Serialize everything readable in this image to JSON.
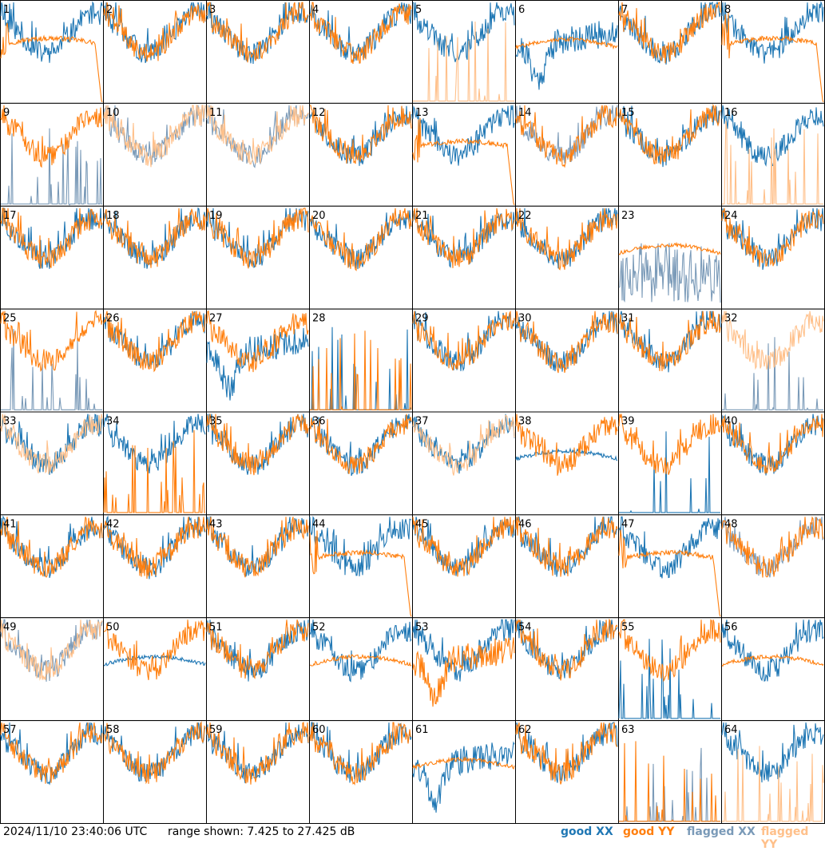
{
  "footer": {
    "timestamp": "2024/11/10 23:40:06 UTC",
    "range_text": "range shown: 7.425 to 27.425 dB"
  },
  "legend": [
    {
      "label": "good XX",
      "color": "#1f77b4"
    },
    {
      "label": "good YY",
      "color": "#ff7f0e"
    },
    {
      "label": "flagged XX",
      "color": "#7a9ab8"
    },
    {
      "label": "flagged YY",
      "color": "#ffc08a"
    }
  ],
  "colors": {
    "good_xx": "#1f77b4",
    "good_yy": "#ff7f0e",
    "flagged_xx": "#7a9ab8",
    "flagged_yy": "#ffc08a"
  },
  "chart_data": {
    "type": "line",
    "grid": {
      "rows": 8,
      "cols": 8
    },
    "ylim": [
      7.425,
      27.425
    ],
    "panels": [
      {
        "id": "1",
        "xx": "good",
        "yy": "good",
        "xxk": "normal",
        "yyk": "flat_drop"
      },
      {
        "id": "2",
        "xx": "good",
        "yy": "good",
        "xxk": "normal",
        "yyk": "normal"
      },
      {
        "id": "3",
        "xx": "good",
        "yy": "good",
        "xxk": "normal",
        "yyk": "normal"
      },
      {
        "id": "4",
        "xx": "good",
        "yy": "good",
        "xxk": "normal",
        "yyk": "normal"
      },
      {
        "id": "5",
        "xx": "good",
        "yy": "flagged",
        "xxk": "normal",
        "yyk": "spikes"
      },
      {
        "id": "6",
        "xx": "good",
        "yy": "good",
        "xxk": "dip",
        "yyk": "flat"
      },
      {
        "id": "7",
        "xx": "good",
        "yy": "good",
        "xxk": "normal",
        "yyk": "normal"
      },
      {
        "id": "8",
        "xx": "good",
        "yy": "good",
        "xxk": "normal",
        "yyk": "flat_drop"
      },
      {
        "id": "9",
        "xx": "flagged",
        "yy": "good",
        "xxk": "spikes",
        "yyk": "normal"
      },
      {
        "id": "10",
        "xx": "flagged",
        "yy": "flagged",
        "xxk": "normal",
        "yyk": "normal"
      },
      {
        "id": "11",
        "xx": "flagged",
        "yy": "flagged",
        "xxk": "normal",
        "yyk": "normal"
      },
      {
        "id": "12",
        "xx": "good",
        "yy": "good",
        "xxk": "normal",
        "yyk": "normal"
      },
      {
        "id": "13",
        "xx": "good",
        "yy": "good",
        "xxk": "normal",
        "yyk": "flat_drop"
      },
      {
        "id": "14",
        "xx": "flagged",
        "yy": "good",
        "xxk": "normal",
        "yyk": "normal"
      },
      {
        "id": "15",
        "xx": "good",
        "yy": "good",
        "xxk": "normal",
        "yyk": "normal"
      },
      {
        "id": "16",
        "xx": "good",
        "yy": "flagged",
        "xxk": "normal",
        "yyk": "spikes"
      },
      {
        "id": "17",
        "xx": "good",
        "yy": "good",
        "xxk": "normal",
        "yyk": "normal"
      },
      {
        "id": "18",
        "xx": "good",
        "yy": "good",
        "xxk": "normal",
        "yyk": "normal"
      },
      {
        "id": "19",
        "xx": "good",
        "yy": "good",
        "xxk": "normal",
        "yyk": "normal"
      },
      {
        "id": "20",
        "xx": "good",
        "yy": "good",
        "xxk": "normal",
        "yyk": "normal"
      },
      {
        "id": "21",
        "xx": "good",
        "yy": "good",
        "xxk": "normal",
        "yyk": "normal"
      },
      {
        "id": "22",
        "xx": "good",
        "yy": "good",
        "xxk": "normal",
        "yyk": "normal"
      },
      {
        "id": "23",
        "xx": "flagged",
        "yy": "good",
        "xxk": "noisy_low",
        "yyk": "flat"
      },
      {
        "id": "24",
        "xx": "good",
        "yy": "good",
        "xxk": "normal",
        "yyk": "normal"
      },
      {
        "id": "25",
        "xx": "flagged",
        "yy": "good",
        "xxk": "spikes",
        "yyk": "normal"
      },
      {
        "id": "26",
        "xx": "good",
        "yy": "good",
        "xxk": "normal",
        "yyk": "normal"
      },
      {
        "id": "27",
        "xx": "good",
        "yy": "good",
        "xxk": "dip",
        "yyk": "normal"
      },
      {
        "id": "28",
        "xx": "good",
        "yy": "good",
        "xxk": "spikes",
        "yyk": "spikes"
      },
      {
        "id": "29",
        "xx": "good",
        "yy": "good",
        "xxk": "normal",
        "yyk": "normal"
      },
      {
        "id": "30",
        "xx": "good",
        "yy": "good",
        "xxk": "normal",
        "yyk": "normal"
      },
      {
        "id": "31",
        "xx": "good",
        "yy": "good",
        "xxk": "normal",
        "yyk": "normal"
      },
      {
        "id": "32",
        "xx": "flagged",
        "yy": "flagged",
        "xxk": "spikes",
        "yyk": "normal"
      },
      {
        "id": "33",
        "xx": "good",
        "yy": "flagged",
        "xxk": "normal",
        "yyk": "normal"
      },
      {
        "id": "34",
        "xx": "good",
        "yy": "good",
        "xxk": "normal",
        "yyk": "spikes"
      },
      {
        "id": "35",
        "xx": "good",
        "yy": "good",
        "xxk": "normal",
        "yyk": "normal"
      },
      {
        "id": "36",
        "xx": "good",
        "yy": "good",
        "xxk": "normal",
        "yyk": "normal"
      },
      {
        "id": "37",
        "xx": "good",
        "yy": "flagged",
        "xxk": "normal",
        "yyk": "normal"
      },
      {
        "id": "38",
        "xx": "good",
        "yy": "good",
        "xxk": "flat",
        "yyk": "normal"
      },
      {
        "id": "39",
        "xx": "good",
        "yy": "good",
        "xxk": "spikes",
        "yyk": "normal"
      },
      {
        "id": "40",
        "xx": "good",
        "yy": "good",
        "xxk": "normal",
        "yyk": "normal"
      },
      {
        "id": "41",
        "xx": "good",
        "yy": "good",
        "xxk": "normal",
        "yyk": "normal"
      },
      {
        "id": "42",
        "xx": "good",
        "yy": "good",
        "xxk": "normal",
        "yyk": "normal"
      },
      {
        "id": "43",
        "xx": "good",
        "yy": "good",
        "xxk": "normal",
        "yyk": "normal"
      },
      {
        "id": "44",
        "xx": "good",
        "yy": "good",
        "xxk": "normal",
        "yyk": "flat_drop"
      },
      {
        "id": "45",
        "xx": "good",
        "yy": "good",
        "xxk": "normal",
        "yyk": "normal"
      },
      {
        "id": "46",
        "xx": "good",
        "yy": "good",
        "xxk": "normal",
        "yyk": "normal"
      },
      {
        "id": "47",
        "xx": "good",
        "yy": "good",
        "xxk": "normal",
        "yyk": "flat_drop"
      },
      {
        "id": "48",
        "xx": "flagged",
        "yy": "good",
        "xxk": "normal",
        "yyk": "normal"
      },
      {
        "id": "49",
        "xx": "flagged",
        "yy": "flagged",
        "xxk": "normal",
        "yyk": "normal"
      },
      {
        "id": "50",
        "xx": "good",
        "yy": "good",
        "xxk": "flat",
        "yyk": "normal"
      },
      {
        "id": "51",
        "xx": "good",
        "yy": "good",
        "xxk": "normal",
        "yyk": "normal"
      },
      {
        "id": "52",
        "xx": "good",
        "yy": "good",
        "xxk": "normal",
        "yyk": "flat"
      },
      {
        "id": "53",
        "xx": "good",
        "yy": "good",
        "xxk": "normal",
        "yyk": "dip"
      },
      {
        "id": "54",
        "xx": "good",
        "yy": "good",
        "xxk": "normal",
        "yyk": "normal"
      },
      {
        "id": "55",
        "xx": "good",
        "yy": "good",
        "xxk": "spikes",
        "yyk": "normal"
      },
      {
        "id": "56",
        "xx": "good",
        "yy": "good",
        "xxk": "normal",
        "yyk": "flat"
      },
      {
        "id": "57",
        "xx": "good",
        "yy": "good",
        "xxk": "normal",
        "yyk": "normal"
      },
      {
        "id": "58",
        "xx": "good",
        "yy": "good",
        "xxk": "normal",
        "yyk": "normal"
      },
      {
        "id": "59",
        "xx": "good",
        "yy": "good",
        "xxk": "normal",
        "yyk": "normal"
      },
      {
        "id": "60",
        "xx": "good",
        "yy": "good",
        "xxk": "normal",
        "yyk": "normal"
      },
      {
        "id": "61",
        "xx": "good",
        "yy": "good",
        "xxk": "dip",
        "yyk": "flat"
      },
      {
        "id": "62",
        "xx": "good",
        "yy": "good",
        "xxk": "normal",
        "yyk": "normal"
      },
      {
        "id": "63",
        "xx": "flagged",
        "yy": "good",
        "xxk": "spikes",
        "yyk": "spikes"
      },
      {
        "id": "64",
        "xx": "good",
        "yy": "flagged",
        "xxk": "normal",
        "yyk": "spikes"
      }
    ]
  }
}
